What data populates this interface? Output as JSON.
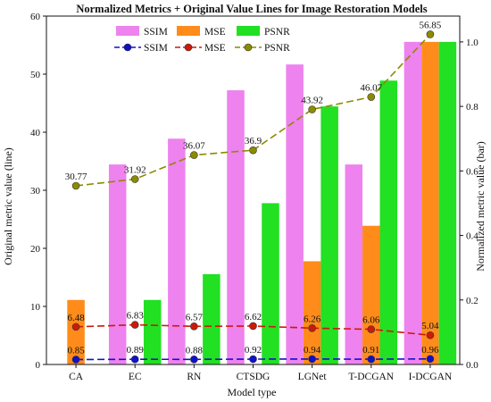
{
  "chart_data": {
    "type": "bar",
    "title": "Normalized Metrics + Original Value Lines for Image Restoration Models",
    "xlabel": "Model type",
    "ylabel_left": "Original metric value (line)",
    "ylabel_right": "Normalized metric value (bar)",
    "categories": [
      "CA",
      "EC",
      "RN",
      "CTSDG",
      "LGNet",
      "T-DCGAN",
      "I-DCGAN"
    ],
    "left_axis": {
      "ylim": [
        0,
        60
      ],
      "ticks": [
        "0",
        "10",
        "20",
        "30",
        "40",
        "50",
        "60"
      ]
    },
    "right_axis": {
      "ylim": [
        0,
        1.08
      ],
      "ticks": [
        "0.0",
        "0.2",
        "0.4",
        "0.6",
        "0.8",
        "1.0"
      ]
    },
    "grid": false,
    "legend_placement": "top-center",
    "bar_series": [
      {
        "name": "SSIM",
        "color": "#EE82EE",
        "values": [
          0.0,
          0.62,
          0.7,
          0.85,
          0.93,
          0.62,
          1.0
        ]
      },
      {
        "name": "MSE",
        "color": "#FF8C1A",
        "values": [
          0.2,
          0.0,
          0.0,
          0.0,
          0.32,
          0.43,
          1.0
        ]
      },
      {
        "name": "PSNR",
        "color": "#22E022",
        "values": [
          0.0,
          0.2,
          0.28,
          0.5,
          0.8,
          0.88,
          1.0
        ]
      }
    ],
    "line_series": [
      {
        "name": "SSIM",
        "color": "#1010CC",
        "values": [
          0.85,
          0.89,
          0.88,
          0.92,
          0.94,
          0.91,
          0.96
        ],
        "labels": [
          "0.85",
          "0.89",
          "0.88",
          "0.92",
          "0.94",
          "0.91",
          "0.96"
        ]
      },
      {
        "name": "MSE",
        "color": "#CC1A0A",
        "values": [
          6.48,
          6.83,
          6.57,
          6.62,
          6.26,
          6.06,
          5.04
        ],
        "labels": [
          "6.48",
          "6.83",
          "6.57",
          "6.62",
          "6.26",
          "6.06",
          "5.04"
        ]
      },
      {
        "name": "PSNR",
        "color": "#8B8B00",
        "values": [
          30.77,
          31.92,
          36.07,
          36.9,
          43.92,
          46.07,
          56.85
        ],
        "labels": [
          "30.77",
          "31.92",
          "36.07",
          "36.9",
          "43.92",
          "46.07",
          "56.85"
        ]
      }
    ]
  }
}
